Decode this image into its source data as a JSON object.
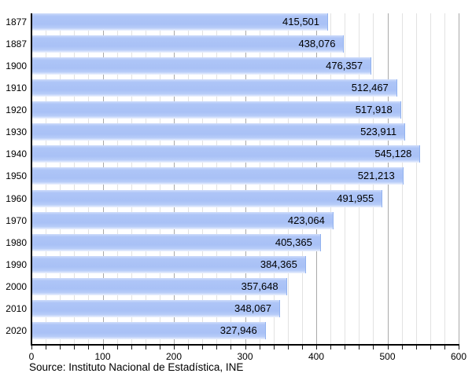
{
  "chart_data": {
    "type": "bar",
    "orientation": "horizontal",
    "title": "",
    "xlabel": "",
    "ylabel": "",
    "categories": [
      "1877",
      "1887",
      "1900",
      "1910",
      "1920",
      "1930",
      "1940",
      "1950",
      "1960",
      "1970",
      "1980",
      "1990",
      "2000",
      "2010",
      "2020"
    ],
    "values": [
      415501,
      438076,
      476357,
      512467,
      517918,
      523911,
      545128,
      521213,
      491955,
      423064,
      405365,
      384365,
      357648,
      348067,
      327946
    ],
    "value_labels": [
      "415,501",
      "438,076",
      "476,357",
      "512,467",
      "517,918",
      "523,911",
      "545,128",
      "521,213",
      "491,955",
      "423,064",
      "405,365",
      "384,365",
      "357,648",
      "348,067",
      "327,946"
    ],
    "xlim": [
      0,
      600
    ],
    "x_axis_unit": "thousands",
    "x_major_ticks": [
      0,
      100,
      200,
      300,
      400,
      500,
      600
    ],
    "x_minor_step": 20,
    "grid": "vertical-minor-and-major",
    "legend_position": "none"
  },
  "source": {
    "text": "Source: Instituto Nacional de Estadística, INE"
  },
  "colors": {
    "bar_fill": "#a9c1f6",
    "bar_highlight": "#cfdcfa",
    "bar_fade": "#edf2fe",
    "bar_edge": "#92b2ef",
    "grid_minor": "#e2e2e2",
    "grid_major": "#a9a9a9",
    "axis": "#000000",
    "text": "#000000",
    "background": "#ffffff"
  }
}
